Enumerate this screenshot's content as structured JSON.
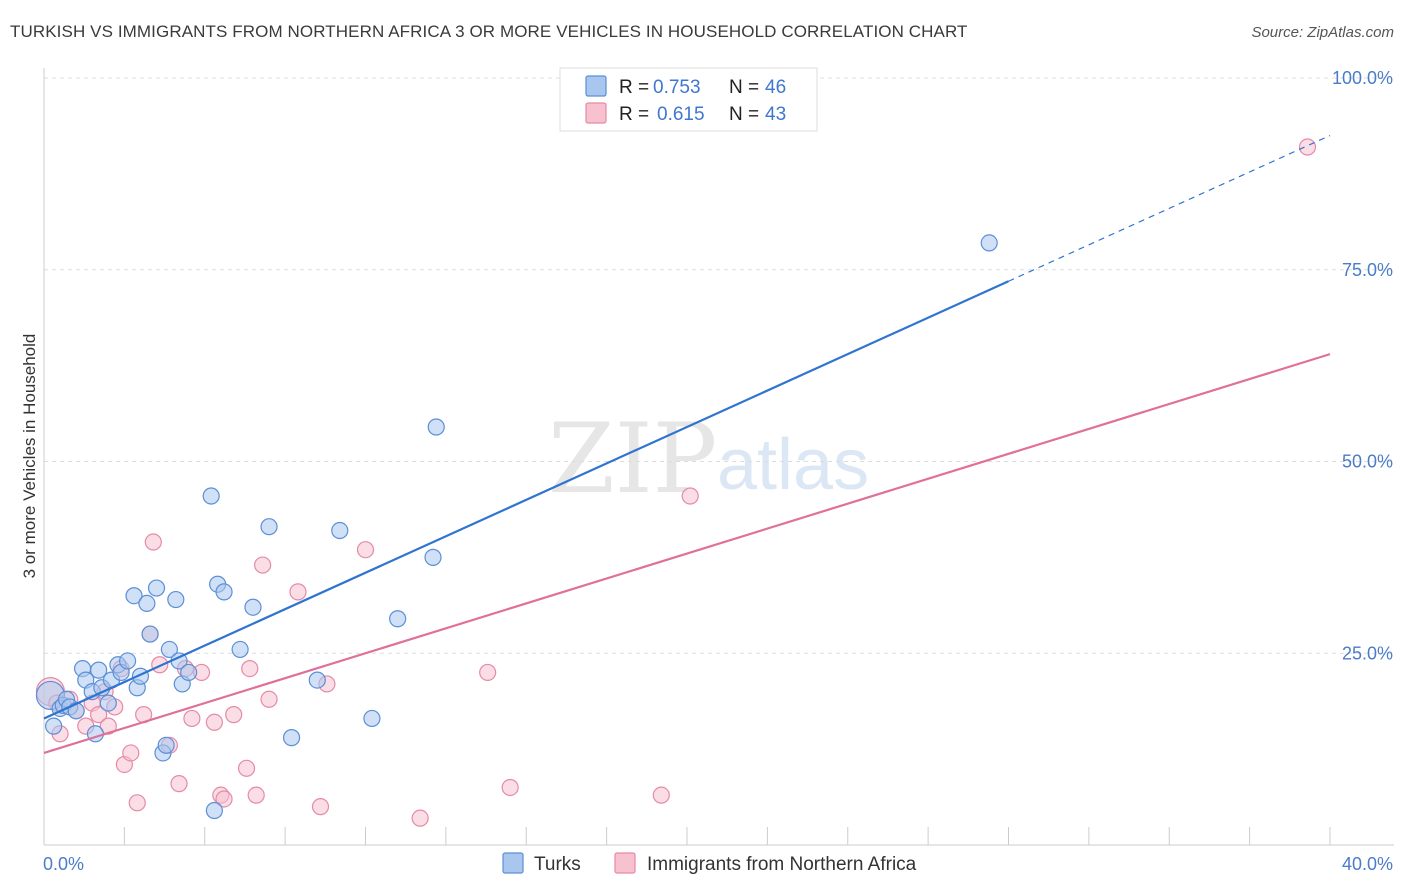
{
  "title": "TURKISH VS IMMIGRANTS FROM NORTHERN AFRICA 3 OR MORE VEHICLES IN HOUSEHOLD CORRELATION CHART",
  "source": "Source: ZipAtlas.com",
  "watermark": {
    "zip": "ZIP",
    "atlas": "atlas"
  },
  "colors": {
    "turks_fill": "#a9c6ee",
    "turks_stroke": "#5b8fd6",
    "turks_line": "#2f74d0",
    "nafrica_fill": "#f7c1d0",
    "nafrica_stroke": "#e58aa8",
    "nafrica_line": "#e0709a",
    "tick_label": "#4a7cc9",
    "grid": "#dddddd"
  },
  "legend": {
    "rows": [
      {
        "r_label": "R =",
        "r_value": "0.753",
        "n_label": "N =",
        "n_value": "46"
      },
      {
        "r_label": "R =",
        "r_value": "0.615",
        "n_label": "N =",
        "n_value": "43"
      }
    ]
  },
  "bottom_legend": [
    "Turks",
    "Immigrants from Northern Africa"
  ],
  "chart_data": {
    "type": "scatter",
    "ylabel": "3 or more Vehicles in Household",
    "xlabel": "",
    "xlim": [
      0,
      40
    ],
    "ylim": [
      0,
      100
    ],
    "x_tick_labels": [
      {
        "value": 0,
        "label": "0.0%"
      },
      {
        "value": 40,
        "label": "40.0%"
      }
    ],
    "y_tick_labels": [
      {
        "value": 25,
        "label": "25.0%"
      },
      {
        "value": 50,
        "label": "50.0%"
      },
      {
        "value": 75,
        "label": "75.0%"
      },
      {
        "value": 100,
        "label": "100.0%"
      }
    ],
    "grid": true,
    "legend_position": "top-center",
    "series": [
      {
        "name": "Turks",
        "r": 0.753,
        "n": 46,
        "trend": {
          "x0": 0,
          "y0": 16.5,
          "x1": 30,
          "y1": 73.5,
          "dash_to_x": 40,
          "dash_to_y": 92.5
        },
        "points": [
          [
            0.2,
            19.5
          ],
          [
            0.3,
            15.5
          ],
          [
            0.5,
            17.8
          ],
          [
            0.6,
            18.2
          ],
          [
            0.7,
            19.0
          ],
          [
            0.8,
            18.0
          ],
          [
            1.0,
            17.5
          ],
          [
            1.2,
            23.0
          ],
          [
            1.3,
            21.5
          ],
          [
            1.5,
            20.0
          ],
          [
            1.6,
            14.5
          ],
          [
            1.7,
            22.8
          ],
          [
            1.8,
            20.5
          ],
          [
            2.0,
            18.5
          ],
          [
            2.1,
            21.5
          ],
          [
            2.3,
            23.5
          ],
          [
            2.4,
            22.5
          ],
          [
            2.6,
            24.0
          ],
          [
            2.8,
            32.5
          ],
          [
            2.9,
            20.5
          ],
          [
            3.0,
            22.0
          ],
          [
            3.2,
            31.5
          ],
          [
            3.3,
            27.5
          ],
          [
            3.5,
            33.5
          ],
          [
            3.7,
            12.0
          ],
          [
            3.8,
            13.0
          ],
          [
            3.9,
            25.5
          ],
          [
            4.1,
            32.0
          ],
          [
            4.2,
            24.0
          ],
          [
            4.3,
            21.0
          ],
          [
            4.5,
            22.5
          ],
          [
            5.2,
            45.5
          ],
          [
            5.3,
            4.5
          ],
          [
            5.4,
            34.0
          ],
          [
            5.6,
            33.0
          ],
          [
            6.1,
            25.5
          ],
          [
            6.5,
            31.0
          ],
          [
            7.0,
            41.5
          ],
          [
            7.7,
            14.0
          ],
          [
            8.5,
            21.5
          ],
          [
            9.2,
            41.0
          ],
          [
            10.2,
            16.5
          ],
          [
            11.0,
            29.5
          ],
          [
            12.1,
            37.5
          ],
          [
            12.2,
            54.5
          ],
          [
            29.4,
            78.5
          ]
        ]
      },
      {
        "name": "Immigrants from Northern Africa",
        "r": 0.615,
        "n": 43,
        "trend": {
          "x0": 0,
          "y0": 12.0,
          "x1": 40,
          "y1": 64.0
        },
        "points": [
          [
            0.2,
            20.0
          ],
          [
            0.4,
            18.5
          ],
          [
            0.5,
            14.5
          ],
          [
            0.8,
            19.0
          ],
          [
            1.0,
            17.5
          ],
          [
            1.3,
            15.5
          ],
          [
            1.5,
            18.5
          ],
          [
            1.7,
            17.0
          ],
          [
            1.9,
            20.0
          ],
          [
            2.0,
            15.5
          ],
          [
            2.2,
            18.0
          ],
          [
            2.4,
            23.0
          ],
          [
            2.5,
            10.5
          ],
          [
            2.7,
            12.0
          ],
          [
            2.9,
            5.5
          ],
          [
            3.1,
            17.0
          ],
          [
            3.3,
            27.5
          ],
          [
            3.4,
            39.5
          ],
          [
            3.6,
            23.5
          ],
          [
            3.9,
            13.0
          ],
          [
            4.2,
            8.0
          ],
          [
            4.4,
            23.0
          ],
          [
            4.6,
            16.5
          ],
          [
            4.9,
            22.5
          ],
          [
            5.3,
            16.0
          ],
          [
            5.5,
            6.5
          ],
          [
            5.6,
            6.0
          ],
          [
            5.9,
            17.0
          ],
          [
            6.3,
            10.0
          ],
          [
            6.4,
            23.0
          ],
          [
            6.6,
            6.5
          ],
          [
            6.8,
            36.5
          ],
          [
            7.0,
            19.0
          ],
          [
            7.9,
            33.0
          ],
          [
            8.6,
            5.0
          ],
          [
            8.8,
            21.0
          ],
          [
            10.0,
            38.5
          ],
          [
            11.7,
            3.5
          ],
          [
            13.8,
            22.5
          ],
          [
            14.5,
            7.5
          ],
          [
            19.2,
            6.5
          ],
          [
            20.1,
            45.5
          ],
          [
            39.3,
            91.0
          ]
        ]
      }
    ]
  }
}
